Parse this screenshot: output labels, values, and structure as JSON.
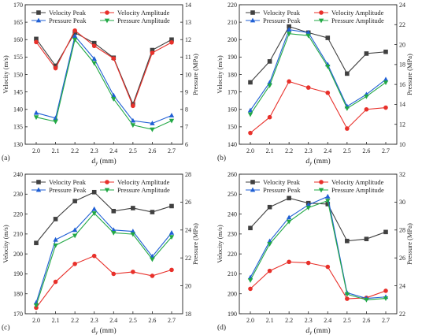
{
  "chart_data": [
    {
      "type": "line",
      "panel_label": "(a)",
      "x": [
        "2.0",
        "2.1",
        "2.2",
        "2.3",
        "2.4",
        "2.5",
        "2.6",
        "2.7"
      ],
      "xlabel": "dy (mm)",
      "ylabel_left": "Velocity (m/s)",
      "ylabel_right": "Pressure (MPa)",
      "ylim_left": [
        130,
        170
      ],
      "yticks_left": [
        "130",
        "135",
        "140",
        "145",
        "150",
        "155",
        "160",
        "165",
        "170"
      ],
      "ylim_right": [
        6,
        14
      ],
      "yticks_right": [
        "6",
        "7",
        "8",
        "9",
        "10",
        "11",
        "12",
        "13",
        "14"
      ],
      "legend_placement": "top",
      "series": [
        {
          "name": "Velocity Peak",
          "axis": "left",
          "color": "#404040",
          "marker": "square",
          "values": [
            160.2,
            152.5,
            162.0,
            159.0,
            154.8,
            141.5,
            157.0,
            160.0
          ]
        },
        {
          "name": "Velocity Amplitude",
          "axis": "left",
          "color": "#e8302a",
          "marker": "circle",
          "values": [
            159.3,
            151.8,
            162.6,
            158.2,
            154.6,
            141.0,
            156.2,
            159.2
          ]
        },
        {
          "name": "Pressure Peak",
          "axis": "right",
          "color": "#1f5fd4",
          "marker": "triangle-up",
          "values": [
            7.8,
            7.5,
            12.2,
            10.9,
            8.8,
            7.35,
            7.2,
            7.65
          ]
        },
        {
          "name": "Pressure Amplitude",
          "axis": "right",
          "color": "#22a845",
          "marker": "triangle-down",
          "values": [
            7.55,
            7.3,
            12.0,
            10.65,
            8.6,
            7.1,
            6.85,
            7.35
          ]
        }
      ]
    },
    {
      "type": "line",
      "panel_label": "(b)",
      "x": [
        "2.0",
        "2.1",
        "2.2",
        "2.3",
        "2.4",
        "2.5",
        "2.6",
        "2.7"
      ],
      "xlabel": "dy (mm)",
      "ylabel_left": "Velocity (m/s)",
      "ylabel_right": "Pressure (MPa)",
      "ylim_left": [
        140,
        220
      ],
      "yticks_left": [
        "140",
        "150",
        "160",
        "170",
        "180",
        "190",
        "200",
        "210",
        "220"
      ],
      "ylim_right": [
        10,
        24
      ],
      "yticks_right": [
        "10",
        "12",
        "14",
        "16",
        "18",
        "20",
        "22",
        "24"
      ],
      "legend_placement": "top",
      "series": [
        {
          "name": "Velocity Peak",
          "axis": "left",
          "color": "#404040",
          "marker": "square",
          "values": [
            175.5,
            187.5,
            207.5,
            204.0,
            201.0,
            180.5,
            192.0,
            193.0
          ]
        },
        {
          "name": "Velocity Amplitude",
          "axis": "left",
          "color": "#e8302a",
          "marker": "circle",
          "values": [
            146.5,
            155.5,
            176.0,
            172.5,
            169.5,
            149.0,
            160.0,
            161.0
          ]
        },
        {
          "name": "Pressure Peak",
          "axis": "right",
          "color": "#1f5fd4",
          "marker": "triangle-up",
          "values": [
            13.4,
            16.2,
            21.5,
            21.2,
            18.0,
            13.8,
            15.0,
            16.5
          ]
        },
        {
          "name": "Pressure Amplitude",
          "axis": "right",
          "color": "#22a845",
          "marker": "triangle-down",
          "values": [
            13.0,
            15.9,
            21.1,
            20.9,
            17.8,
            13.6,
            14.8,
            16.2
          ]
        }
      ]
    },
    {
      "type": "line",
      "panel_label": "(c)",
      "x": [
        "2.0",
        "2.1",
        "2.2",
        "2.3",
        "2.4",
        "2.5",
        "2.6",
        "2.7"
      ],
      "xlabel": "dy (mm)",
      "ylabel_left": "Velocity (m/s)",
      "ylabel_right": "Pressure (MPa)",
      "ylim_left": [
        170,
        240
      ],
      "yticks_left": [
        "170",
        "180",
        "190",
        "200",
        "210",
        "220",
        "230",
        "240"
      ],
      "ylim_right": [
        18,
        28
      ],
      "yticks_right": [
        "18",
        "20",
        "22",
        "24",
        "26",
        "28"
      ],
      "legend_placement": "top",
      "series": [
        {
          "name": "Velocity Peak",
          "axis": "left",
          "color": "#404040",
          "marker": "square",
          "values": [
            205.5,
            217.5,
            226.5,
            231.0,
            221.5,
            223.0,
            221.0,
            224.0
          ]
        },
        {
          "name": "Velocity Amplitude",
          "axis": "left",
          "color": "#e8302a",
          "marker": "circle",
          "values": [
            173.0,
            186.0,
            195.0,
            199.0,
            190.0,
            191.0,
            189.0,
            192.0
          ]
        },
        {
          "name": "Pressure Peak",
          "axis": "right",
          "color": "#1f5fd4",
          "marker": "triangle-up",
          "values": [
            18.8,
            23.3,
            24.0,
            25.5,
            24.0,
            23.9,
            22.1,
            23.8
          ]
        },
        {
          "name": "Pressure Amplitude",
          "axis": "right",
          "color": "#22a845",
          "marker": "triangle-down",
          "values": [
            18.6,
            22.9,
            23.6,
            25.2,
            23.8,
            23.7,
            21.9,
            23.5
          ]
        }
      ]
    },
    {
      "type": "line",
      "panel_label": "(d)",
      "x": [
        "2.0",
        "2.1",
        "2.2",
        "2.3",
        "2.4",
        "2.5",
        "2.6",
        "2.7"
      ],
      "xlabel": "dy (mm)",
      "ylabel_left": "Velocity (m/s)",
      "ylabel_right": "Pressure (MPa)",
      "ylim_left": [
        190,
        260
      ],
      "yticks_left": [
        "190",
        "200",
        "210",
        "220",
        "230",
        "240",
        "250",
        "260"
      ],
      "ylim_right": [
        22,
        32
      ],
      "yticks_right": [
        "22",
        "24",
        "26",
        "28",
        "30",
        "32"
      ],
      "legend_placement": "top",
      "series": [
        {
          "name": "Velocity Peak",
          "axis": "left",
          "color": "#404040",
          "marker": "square",
          "values": [
            233.0,
            243.5,
            248.0,
            245.5,
            245.0,
            226.5,
            227.5,
            231.0
          ]
        },
        {
          "name": "Velocity Amplitude",
          "axis": "left",
          "color": "#e8302a",
          "marker": "circle",
          "values": [
            202.5,
            211.5,
            216.0,
            215.5,
            213.5,
            197.5,
            198.0,
            201.5
          ]
        },
        {
          "name": "Pressure Peak",
          "axis": "right",
          "color": "#1f5fd4",
          "marker": "triangle-up",
          "values": [
            24.6,
            27.2,
            28.9,
            29.8,
            30.4,
            23.5,
            23.1,
            23.2
          ]
        },
        {
          "name": "Pressure Amplitude",
          "axis": "right",
          "color": "#22a845",
          "marker": "triangle-down",
          "values": [
            24.4,
            27.0,
            28.6,
            29.6,
            30.1,
            23.4,
            23.0,
            23.1
          ]
        }
      ]
    }
  ]
}
